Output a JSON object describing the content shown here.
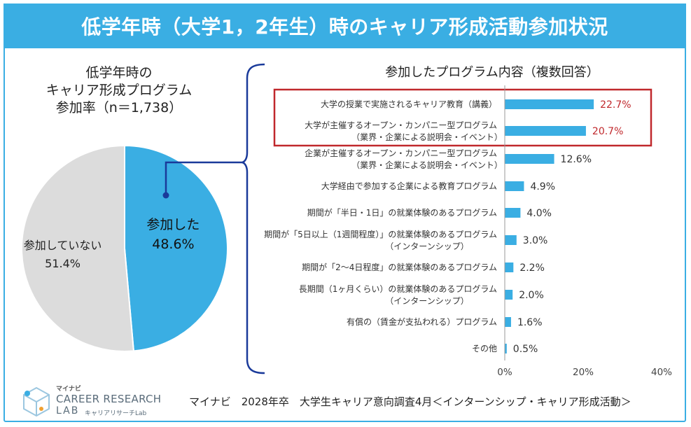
{
  "header": {
    "title": "低学年時（大学1，2年生）時のキャリア形成活動参加状況"
  },
  "pie_title_lines": [
    "低学年時の",
    "キャリア形成プログラム",
    "参加率（n＝1,738）"
  ],
  "colors": {
    "accent": "#3aaee3",
    "bar": "#3aaee3",
    "pie_participated": "#3aaee3",
    "pie_not": "#dcdcdc",
    "highlight_box": "#c0282c",
    "highlight_text": "#c0282c",
    "bracket": "#1a3a9a"
  },
  "chart_data": [
    {
      "type": "pie",
      "title": "低学年時の キャリア形成プログラム 参加率（n＝1,738）",
      "slices": [
        {
          "label": "参加した",
          "value": 48.6,
          "value_text": "48.6%"
        },
        {
          "label": "参加していない",
          "value": 51.4,
          "value_text": "51.4%"
        }
      ]
    },
    {
      "type": "bar",
      "orientation": "horizontal",
      "title": "参加したプログラム内容（複数回答）",
      "xlim": [
        0,
        40
      ],
      "xticks": [
        "0%",
        "20%",
        "40%"
      ],
      "xtick_values": [
        0,
        20,
        40
      ],
      "grid": false,
      "categories": [
        [
          "大学の授業で実施されるキャリア教育（講義）"
        ],
        [
          "大学が主催するオープン・カンパニー型プログラム",
          "（業界・企業による説明会・イベント）"
        ],
        [
          "企業が主催するオープン・カンパニー型プログラム",
          "（業界・企業による説明会・イベント）"
        ],
        [
          "大学経由で参加する企業による教育プログラム"
        ],
        [
          "期間が「半日・1日」の就業体験のあるプログラム"
        ],
        [
          "期間が「5日以上（1週間程度）」の就業体験のあるプログラム",
          "（インターンシップ）"
        ],
        [
          "期間が「2～4日程度」の就業体験のあるプログラム"
        ],
        [
          "長期間（1ヶ月くらい）の就業体験のあるプログラム",
          "（インターンシップ）"
        ],
        [
          "有償の（賃金が支払われる）プログラム"
        ],
        [
          "その他"
        ]
      ],
      "values": [
        22.7,
        20.7,
        12.6,
        4.9,
        4.0,
        3.0,
        2.2,
        2.0,
        1.6,
        0.5
      ],
      "value_labels": [
        "22.7%",
        "20.7%",
        "12.6%",
        "4.9%",
        "4.0%",
        "3.0%",
        "2.2%",
        "2.0%",
        "1.6%",
        "0.5%"
      ],
      "highlighted": [
        0,
        1
      ]
    }
  ],
  "footer": {
    "source": "マイナビ　2028年卒　大学生キャリア意向調査4月＜インターンシップ・キャリア形成活動＞"
  },
  "logo": {
    "small": "マイナビ",
    "main": "CAREER RESEARCH",
    "lab": "LAB",
    "sub": "キャリアリサーチLab"
  }
}
